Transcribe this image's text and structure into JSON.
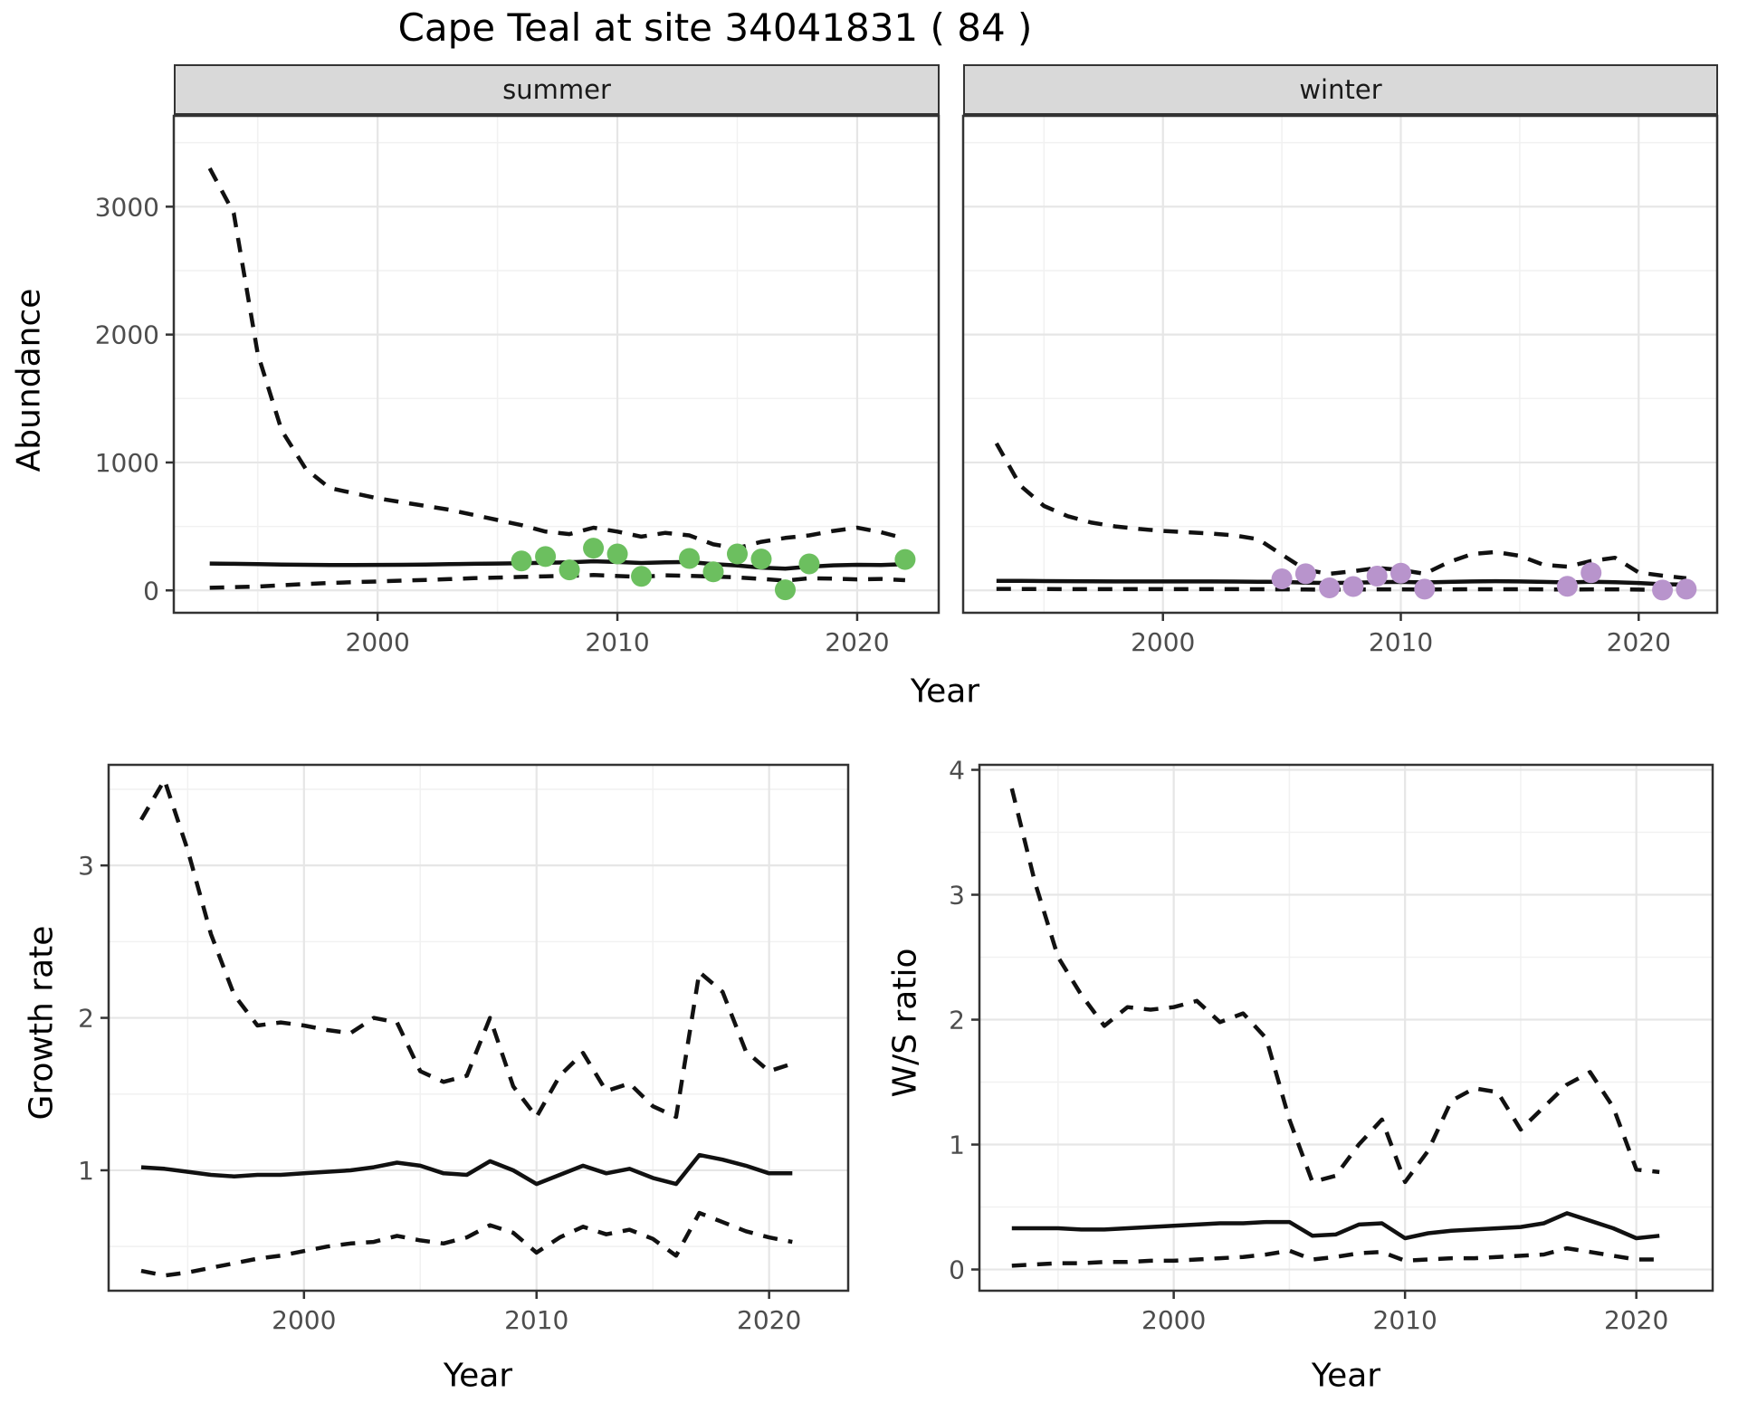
{
  "title": "Cape Teal at site 34041831 ( 84 )",
  "facets": {
    "summer_label": "summer",
    "winter_label": "winter"
  },
  "axis_titles": {
    "abundance": "Abundance",
    "year_top": "Year",
    "growth": "Growth rate",
    "ws": "W/S ratio",
    "year_growth": "Year",
    "year_ws": "Year"
  },
  "colors": {
    "summer_points": "#6cbf5f",
    "winter_points": "#b894cc",
    "line": "#111111",
    "tick_label": "#4d4d4d",
    "tick_mark": "#333333",
    "panel_border": "#333333",
    "strip_bg": "#d9d9d9",
    "grid_major": "#e6e6e6",
    "grid_minor": "#f1f1f1"
  },
  "chart_data": [
    {
      "id": "abundance_summer",
      "type": "line",
      "facet": "summer",
      "xlabel": "Year",
      "ylabel": "Abundance",
      "xlim": [
        1991.5,
        2023.4
      ],
      "ylim": [
        -175,
        3710
      ],
      "xticks": [
        2000,
        2010,
        2020
      ],
      "xticks_minor": [
        1995,
        2005,
        2015
      ],
      "yticks": [
        0,
        1000,
        2000,
        3000
      ],
      "yticks_minor": [
        500,
        1500,
        2500,
        3500
      ],
      "grid": true,
      "series": [
        {
          "name": "upper-95ci",
          "style": "dashed",
          "x": [
            1993,
            1994,
            1995,
            1996,
            1997,
            1998,
            1999,
            2000,
            2001,
            2002,
            2003,
            2004,
            2005,
            2006,
            2007,
            2008,
            2009,
            2010,
            2011,
            2012,
            2013,
            2014,
            2015,
            2016,
            2017,
            2018,
            2019,
            2020,
            2021,
            2022
          ],
          "y": [
            3300,
            2950,
            1850,
            1250,
            950,
            800,
            760,
            720,
            690,
            660,
            630,
            590,
            550,
            510,
            460,
            440,
            490,
            460,
            420,
            450,
            430,
            360,
            330,
            380,
            410,
            430,
            465,
            490,
            455,
            405
          ]
        },
        {
          "name": "estimate",
          "style": "solid",
          "x": [
            1993,
            1994,
            1995,
            1996,
            1997,
            1998,
            1999,
            2000,
            2001,
            2002,
            2003,
            2004,
            2005,
            2006,
            2007,
            2008,
            2009,
            2010,
            2011,
            2012,
            2013,
            2014,
            2015,
            2016,
            2017,
            2018,
            2019,
            2020,
            2021,
            2022
          ],
          "y": [
            210,
            208,
            205,
            202,
            200,
            198,
            198,
            199,
            200,
            202,
            205,
            208,
            210,
            213,
            216,
            220,
            228,
            222,
            214,
            220,
            222,
            205,
            195,
            178,
            170,
            185,
            196,
            200,
            198,
            205
          ]
        },
        {
          "name": "lower-95ci",
          "style": "dashed",
          "x": [
            1993,
            1994,
            1995,
            1996,
            1997,
            1998,
            1999,
            2000,
            2001,
            2002,
            2003,
            2004,
            2005,
            2006,
            2007,
            2008,
            2009,
            2010,
            2011,
            2012,
            2013,
            2014,
            2015,
            2016,
            2017,
            2018,
            2019,
            2020,
            2021,
            2022
          ],
          "y": [
            20,
            25,
            30,
            40,
            50,
            58,
            64,
            70,
            76,
            82,
            88,
            95,
            100,
            105,
            110,
            114,
            120,
            112,
            106,
            118,
            114,
            108,
            102,
            90,
            76,
            95,
            92,
            86,
            90,
            80
          ]
        },
        {
          "name": "observed",
          "style": "points",
          "color": "#6cbf5f",
          "x": [
            2006,
            2007,
            2008,
            2009,
            2010,
            2011,
            2013,
            2014,
            2015,
            2016,
            2017,
            2018,
            2022
          ],
          "y": [
            230,
            265,
            160,
            330,
            285,
            110,
            250,
            145,
            285,
            245,
            5,
            207,
            242
          ]
        }
      ]
    },
    {
      "id": "abundance_winter",
      "type": "line",
      "facet": "winter",
      "xlabel": "Year",
      "ylabel": "Abundance",
      "xlim": [
        1991.6,
        2023.3
      ],
      "ylim": [
        -175,
        3710
      ],
      "xticks": [
        2000,
        2010,
        2020
      ],
      "xticks_minor": [
        1995,
        2005,
        2015
      ],
      "yticks": [
        0,
        1000,
        2000,
        3000
      ],
      "yticks_minor": [
        500,
        1500,
        2500,
        3500
      ],
      "grid": true,
      "series": [
        {
          "name": "upper-95ci",
          "style": "dashed",
          "x": [
            1993,
            1994,
            1995,
            1996,
            1997,
            1998,
            1999,
            2000,
            2001,
            2002,
            2003,
            2004,
            2005,
            2006,
            2007,
            2008,
            2009,
            2010,
            2011,
            2012,
            2013,
            2014,
            2015,
            2016,
            2017,
            2018,
            2019,
            2020,
            2021,
            2022
          ],
          "y": [
            1150,
            820,
            660,
            580,
            530,
            500,
            480,
            465,
            455,
            445,
            430,
            400,
            280,
            160,
            130,
            150,
            175,
            160,
            130,
            220,
            285,
            300,
            270,
            200,
            185,
            230,
            255,
            140,
            115,
            95
          ]
        },
        {
          "name": "estimate",
          "style": "solid",
          "x": [
            1993,
            1994,
            1995,
            1996,
            1997,
            1998,
            1999,
            2000,
            2001,
            2002,
            2003,
            2004,
            2005,
            2006,
            2007,
            2008,
            2009,
            2010,
            2011,
            2012,
            2013,
            2014,
            2015,
            2016,
            2017,
            2018,
            2019,
            2020,
            2021,
            2022
          ],
          "y": [
            75,
            74,
            73,
            72,
            71,
            70,
            70,
            70,
            70,
            70,
            69,
            68,
            66,
            60,
            58,
            60,
            64,
            66,
            62,
            66,
            70,
            72,
            70,
            66,
            62,
            68,
            64,
            58,
            48,
            45
          ]
        },
        {
          "name": "lower-95ci",
          "style": "dashed",
          "x": [
            1993,
            1994,
            1995,
            1996,
            1997,
            1998,
            1999,
            2000,
            2001,
            2002,
            2003,
            2004,
            2005,
            2006,
            2007,
            2008,
            2009,
            2010,
            2011,
            2012,
            2013,
            2014,
            2015,
            2016,
            2017,
            2018,
            2019,
            2020,
            2021,
            2022
          ],
          "y": [
            12,
            11,
            11,
            10,
            10,
            10,
            10,
            10,
            10,
            10,
            10,
            9,
            8,
            7,
            6,
            7,
            8,
            8,
            7,
            8,
            9,
            9,
            9,
            8,
            7,
            8,
            8,
            6,
            5,
            5
          ]
        },
        {
          "name": "observed",
          "style": "points",
          "color": "#b894cc",
          "x": [
            2005,
            2006,
            2007,
            2008,
            2009,
            2010,
            2011,
            2017,
            2018,
            2021,
            2022
          ],
          "y": [
            90,
            130,
            20,
            30,
            112,
            135,
            10,
            32,
            138,
            3,
            10
          ]
        }
      ]
    },
    {
      "id": "growth_rate",
      "type": "line",
      "facet": "",
      "xlabel": "Year",
      "ylabel": "Growth rate",
      "xlim": [
        1991.6,
        2023.4
      ],
      "ylim": [
        0.21,
        3.66
      ],
      "xticks": [
        2000,
        2010,
        2020
      ],
      "xticks_minor": [
        1995,
        2005,
        2015
      ],
      "yticks": [
        1,
        2,
        3
      ],
      "yticks_minor": [
        0.5,
        1.5,
        2.5,
        3.5
      ],
      "grid": true,
      "series": [
        {
          "name": "upper-95ci",
          "style": "dashed",
          "x": [
            1993,
            1994,
            1995,
            1996,
            1997,
            1998,
            1999,
            2000,
            2001,
            2002,
            2003,
            2004,
            2005,
            2006,
            2007,
            2008,
            2009,
            2010,
            2011,
            2012,
            2013,
            2014,
            2015,
            2016,
            2017,
            2018,
            2019,
            2020,
            2021
          ],
          "y": [
            3.3,
            3.56,
            3.1,
            2.55,
            2.15,
            1.95,
            1.97,
            1.95,
            1.92,
            1.9,
            2.0,
            1.97,
            1.65,
            1.58,
            1.62,
            2.0,
            1.55,
            1.35,
            1.62,
            1.77,
            1.52,
            1.57,
            1.42,
            1.35,
            2.3,
            2.17,
            1.78,
            1.65,
            1.7
          ]
        },
        {
          "name": "estimate",
          "style": "solid",
          "x": [
            1993,
            1994,
            1995,
            1996,
            1997,
            1998,
            1999,
            2000,
            2001,
            2002,
            2003,
            2004,
            2005,
            2006,
            2007,
            2008,
            2009,
            2010,
            2011,
            2012,
            2013,
            2014,
            2015,
            2016,
            2017,
            2018,
            2019,
            2020,
            2021
          ],
          "y": [
            1.02,
            1.01,
            0.99,
            0.97,
            0.96,
            0.97,
            0.97,
            0.98,
            0.99,
            1.0,
            1.02,
            1.05,
            1.03,
            0.98,
            0.97,
            1.06,
            1.0,
            0.91,
            0.97,
            1.03,
            0.98,
            1.01,
            0.95,
            0.91,
            1.1,
            1.07,
            1.03,
            0.98,
            0.98
          ]
        },
        {
          "name": "lower-95ci",
          "style": "dashed",
          "x": [
            1993,
            1994,
            1995,
            1996,
            1997,
            1998,
            1999,
            2000,
            2001,
            2002,
            2003,
            2004,
            2005,
            2006,
            2007,
            2008,
            2009,
            2010,
            2011,
            2012,
            2013,
            2014,
            2015,
            2016,
            2017,
            2018,
            2019,
            2020,
            2021
          ],
          "y": [
            0.34,
            0.31,
            0.33,
            0.36,
            0.39,
            0.42,
            0.44,
            0.47,
            0.5,
            0.52,
            0.53,
            0.57,
            0.54,
            0.52,
            0.56,
            0.64,
            0.59,
            0.46,
            0.56,
            0.63,
            0.58,
            0.61,
            0.55,
            0.44,
            0.72,
            0.66,
            0.6,
            0.56,
            0.53
          ]
        }
      ]
    },
    {
      "id": "ws_ratio",
      "type": "line",
      "facet": "",
      "xlabel": "Year",
      "ylabel": "W/S ratio",
      "xlim": [
        1991.6,
        2023.3
      ],
      "ylim": [
        -0.17,
        4.04
      ],
      "xticks": [
        2000,
        2010,
        2020
      ],
      "xticks_minor": [
        1995,
        2005,
        2015
      ],
      "yticks": [
        0,
        1,
        2,
        3,
        4
      ],
      "yticks_minor": [
        0.5,
        1.5,
        2.5,
        3.5
      ],
      "grid": true,
      "series": [
        {
          "name": "upper-95ci",
          "style": "dashed",
          "x": [
            1993,
            1994,
            1995,
            1996,
            1997,
            1998,
            1999,
            2000,
            2001,
            2002,
            2003,
            2004,
            2005,
            2006,
            2007,
            2008,
            2009,
            2010,
            2011,
            2012,
            2013,
            2014,
            2015,
            2016,
            2017,
            2018,
            2019,
            2020,
            2021
          ],
          "y": [
            3.85,
            3.1,
            2.5,
            2.2,
            1.95,
            2.1,
            2.08,
            2.1,
            2.15,
            1.98,
            2.05,
            1.85,
            1.2,
            0.7,
            0.75,
            1.0,
            1.2,
            0.7,
            0.95,
            1.35,
            1.45,
            1.42,
            1.12,
            1.3,
            1.48,
            1.58,
            1.3,
            0.8,
            0.78
          ]
        },
        {
          "name": "estimate",
          "style": "solid",
          "x": [
            1993,
            1994,
            1995,
            1996,
            1997,
            1998,
            1999,
            2000,
            2001,
            2002,
            2003,
            2004,
            2005,
            2006,
            2007,
            2008,
            2009,
            2010,
            2011,
            2012,
            2013,
            2014,
            2015,
            2016,
            2017,
            2018,
            2019,
            2020,
            2021
          ],
          "y": [
            0.33,
            0.33,
            0.33,
            0.32,
            0.32,
            0.33,
            0.34,
            0.35,
            0.36,
            0.37,
            0.37,
            0.38,
            0.38,
            0.27,
            0.28,
            0.36,
            0.37,
            0.25,
            0.29,
            0.31,
            0.32,
            0.33,
            0.34,
            0.37,
            0.45,
            0.39,
            0.33,
            0.25,
            0.27
          ]
        },
        {
          "name": "lower-95ci",
          "style": "dashed",
          "x": [
            1993,
            1994,
            1995,
            1996,
            1997,
            1998,
            1999,
            2000,
            2001,
            2002,
            2003,
            2004,
            2005,
            2006,
            2007,
            2008,
            2009,
            2010,
            2011,
            2012,
            2013,
            2014,
            2015,
            2016,
            2017,
            2018,
            2019,
            2020,
            2021
          ],
          "y": [
            0.03,
            0.04,
            0.05,
            0.05,
            0.06,
            0.06,
            0.07,
            0.07,
            0.08,
            0.09,
            0.1,
            0.12,
            0.15,
            0.08,
            0.1,
            0.13,
            0.14,
            0.07,
            0.08,
            0.09,
            0.09,
            0.1,
            0.11,
            0.12,
            0.17,
            0.14,
            0.11,
            0.08,
            0.08
          ]
        }
      ]
    }
  ]
}
